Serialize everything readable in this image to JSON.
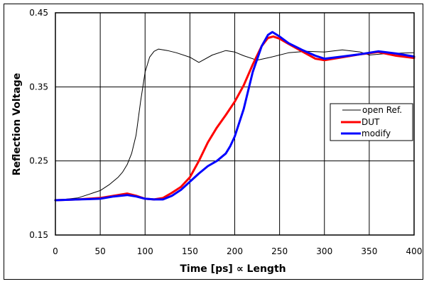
{
  "chart_data": {
    "type": "line",
    "title": "",
    "xlabel": "Time [ps]  ∝  Length",
    "ylabel": "Reflection Voltage",
    "xlim": [
      0,
      400
    ],
    "ylim": [
      0.15,
      0.45
    ],
    "x_ticks": [
      "0",
      "50",
      "100",
      "150",
      "200",
      "250",
      "300",
      "350",
      "400"
    ],
    "y_ticks": [
      "0.15",
      "0.25",
      "0.35",
      "0.45"
    ],
    "grid": true,
    "legend_position": "right-center",
    "series": [
      {
        "name": "open Ref.",
        "color": "#000000",
        "line_width": 1,
        "x": [
          0,
          25,
          50,
          60,
          70,
          75,
          80,
          85,
          90,
          95,
          100,
          105,
          110,
          115,
          125,
          135,
          150,
          160,
          175,
          190,
          200,
          210,
          225,
          240,
          260,
          280,
          300,
          320,
          340,
          350,
          370,
          400
        ],
        "values": [
          0.197,
          0.2,
          0.21,
          0.218,
          0.228,
          0.235,
          0.245,
          0.26,
          0.285,
          0.33,
          0.37,
          0.39,
          0.398,
          0.401,
          0.399,
          0.396,
          0.39,
          0.383,
          0.393,
          0.399,
          0.397,
          0.392,
          0.386,
          0.39,
          0.396,
          0.398,
          0.397,
          0.4,
          0.397,
          0.393,
          0.395,
          0.396
        ]
      },
      {
        "name": "DUT",
        "color": "#ff0000",
        "line_width": 3,
        "x": [
          0,
          25,
          50,
          65,
          80,
          90,
          100,
          110,
          120,
          130,
          140,
          150,
          160,
          170,
          180,
          190,
          200,
          210,
          220,
          230,
          237,
          243,
          250,
          260,
          275,
          290,
          300,
          320,
          340,
          360,
          380,
          400
        ],
        "values": [
          0.197,
          0.198,
          0.2,
          0.203,
          0.206,
          0.203,
          0.199,
          0.198,
          0.2,
          0.207,
          0.215,
          0.228,
          0.25,
          0.275,
          0.295,
          0.312,
          0.33,
          0.352,
          0.38,
          0.405,
          0.416,
          0.418,
          0.415,
          0.408,
          0.398,
          0.388,
          0.386,
          0.39,
          0.394,
          0.397,
          0.392,
          0.389
        ]
      },
      {
        "name": "modify",
        "color": "#0000ff",
        "line_width": 3,
        "x": [
          0,
          25,
          50,
          65,
          80,
          90,
          100,
          110,
          120,
          130,
          140,
          150,
          160,
          170,
          180,
          190,
          195,
          200,
          210,
          220,
          230,
          237,
          242,
          250,
          260,
          275,
          290,
          300,
          320,
          340,
          360,
          380,
          400
        ],
        "values": [
          0.197,
          0.198,
          0.199,
          0.202,
          0.204,
          0.202,
          0.199,
          0.198,
          0.198,
          0.203,
          0.211,
          0.222,
          0.233,
          0.243,
          0.25,
          0.26,
          0.27,
          0.283,
          0.32,
          0.37,
          0.405,
          0.42,
          0.424,
          0.418,
          0.409,
          0.4,
          0.392,
          0.388,
          0.391,
          0.394,
          0.398,
          0.395,
          0.391
        ]
      }
    ]
  },
  "legend": {
    "items": [
      {
        "label": "open Ref.",
        "color": "#000000"
      },
      {
        "label": "DUT",
        "color": "#ff0000"
      },
      {
        "label": "modify",
        "color": "#0000ff"
      }
    ]
  },
  "axes": {
    "x_title": "Time [ps]  ∝  Length",
    "y_title": "Reflection Voltage"
  }
}
